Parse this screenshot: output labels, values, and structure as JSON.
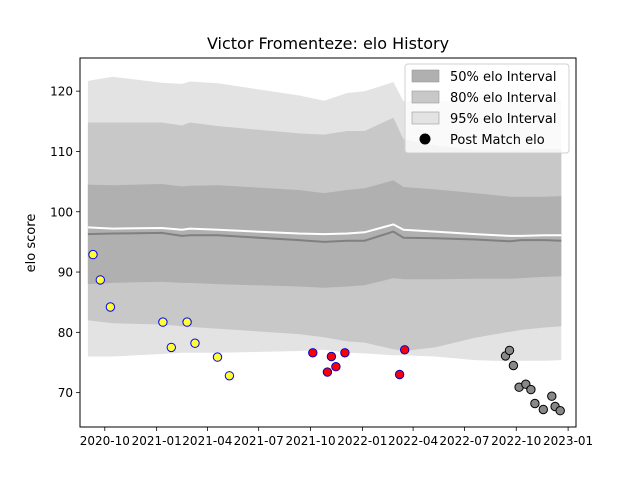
{
  "chart_data": {
    "type": "scatter",
    "title": "Victor Fromenteze: elo History",
    "xlabel": "",
    "ylabel": "elo score",
    "xlim": [
      "2020-08-18",
      "2023-01-15"
    ],
    "ylim": [
      64.3,
      125.5
    ],
    "grid": false,
    "legend_placement": "top-right",
    "x_ticks": [
      "2020-10",
      "2021-01",
      "2021-04",
      "2021-07",
      "2021-10",
      "2022-01",
      "2022-04",
      "2022-07",
      "2022-10",
      "2023-01"
    ],
    "y_ticks": [
      70,
      80,
      90,
      100,
      110,
      120
    ],
    "legend": [
      {
        "label": "50% elo Interval",
        "kind": "band",
        "color": "#b0b0b0"
      },
      {
        "label": "80% elo Interval",
        "kind": "band",
        "color": "#c8c8c8"
      },
      {
        "label": "95% elo Interval",
        "kind": "band",
        "color": "#e3e3e3"
      },
      {
        "label": "Post Match elo",
        "kind": "marker",
        "color": "#000000"
      }
    ],
    "bands": {
      "dates": [
        "2020-09-01",
        "2020-10-15",
        "2021-01-10",
        "2021-02-15",
        "2021-03-01",
        "2021-04-20",
        "2021-09-10",
        "2021-10-25",
        "2021-12-05",
        "2022-01-05",
        "2022-02-25",
        "2022-03-15",
        "2022-05-10",
        "2022-07-20",
        "2022-09-20",
        "2022-10-10",
        "2022-11-20",
        "2022-12-20"
      ],
      "mean": [
        96.3,
        96.4,
        96.5,
        96.0,
        96.1,
        96.1,
        95.3,
        95.0,
        95.2,
        95.2,
        96.7,
        95.7,
        95.6,
        95.4,
        95.1,
        95.3,
        95.3,
        95.2
      ],
      "median": [
        97.4,
        97.2,
        97.3,
        97.0,
        97.2,
        97.0,
        96.4,
        96.3,
        96.4,
        96.6,
        97.9,
        97.0,
        96.7,
        96.3,
        96.0,
        96.0,
        96.1,
        96.1
      ],
      "p50_low": [
        88.0,
        88.2,
        88.4,
        88.2,
        88.2,
        88.0,
        87.6,
        87.4,
        87.6,
        87.8,
        89.0,
        88.8,
        88.8,
        88.9,
        88.9,
        89.0,
        89.2,
        89.3
      ],
      "p50_high": [
        104.5,
        104.4,
        104.6,
        104.2,
        104.3,
        104.4,
        103.6,
        103.1,
        103.6,
        103.9,
        105.2,
        104.1,
        103.7,
        103.1,
        102.5,
        102.5,
        102.5,
        102.6
      ],
      "p80_low": [
        82.0,
        81.5,
        81.3,
        81.0,
        80.9,
        80.6,
        79.7,
        79.2,
        78.5,
        78.3,
        77.2,
        76.9,
        77.5,
        79.1,
        80.1,
        80.4,
        80.8,
        81.0
      ],
      "p80_high": [
        114.8,
        114.8,
        114.8,
        114.3,
        114.8,
        114.2,
        113.0,
        112.8,
        113.4,
        113.4,
        115.6,
        112.0,
        111.0,
        110.2,
        110.2,
        110.3,
        110.4,
        110.4
      ],
      "p95_low": [
        76.0,
        76.0,
        76.4,
        76.6,
        76.6,
        76.6,
        76.9,
        77.1,
        76.6,
        76.5,
        76.2,
        76.2,
        76.0,
        75.4,
        75.2,
        75.3,
        75.3,
        75.4
      ],
      "p95_high": [
        121.7,
        122.4,
        121.4,
        121.2,
        121.6,
        121.3,
        119.3,
        118.4,
        119.7,
        120.0,
        121.5,
        118.3,
        118.3,
        118.5,
        118.6,
        118.6,
        118.7,
        118.6
      ]
    },
    "series": [
      {
        "color": "#ffff33",
        "edge": "#0000ff",
        "points": [
          [
            "2020-09-10",
            92.9
          ],
          [
            "2020-09-23",
            88.7
          ],
          [
            "2020-10-11",
            84.2
          ],
          [
            "2021-01-12",
            81.7
          ],
          [
            "2021-01-27",
            77.5
          ],
          [
            "2021-02-24",
            81.7
          ],
          [
            "2021-03-10",
            78.2
          ],
          [
            "2021-04-19",
            75.9
          ],
          [
            "2021-05-10",
            72.8
          ]
        ]
      },
      {
        "color": "#ff0000",
        "edge": "#0000cc",
        "points": [
          [
            "2021-10-05",
            76.6
          ],
          [
            "2021-10-31",
            73.4
          ],
          [
            "2021-11-07",
            76.0
          ],
          [
            "2021-11-15",
            74.3
          ],
          [
            "2021-12-01",
            76.6
          ],
          [
            "2022-03-08",
            73.0
          ],
          [
            "2022-03-17",
            77.1
          ]
        ]
      },
      {
        "color": "#888888",
        "edge": "#000000",
        "points": [
          [
            "2022-09-12",
            76.1
          ],
          [
            "2022-09-19",
            77.0
          ],
          [
            "2022-09-26",
            74.5
          ],
          [
            "2022-10-06",
            70.9
          ],
          [
            "2022-10-18",
            71.4
          ],
          [
            "2022-10-27",
            70.5
          ],
          [
            "2022-11-03",
            68.2
          ],
          [
            "2022-11-18",
            67.2
          ],
          [
            "2022-12-03",
            69.4
          ],
          [
            "2022-12-09",
            67.7
          ],
          [
            "2022-12-18",
            67.0
          ]
        ]
      }
    ]
  }
}
